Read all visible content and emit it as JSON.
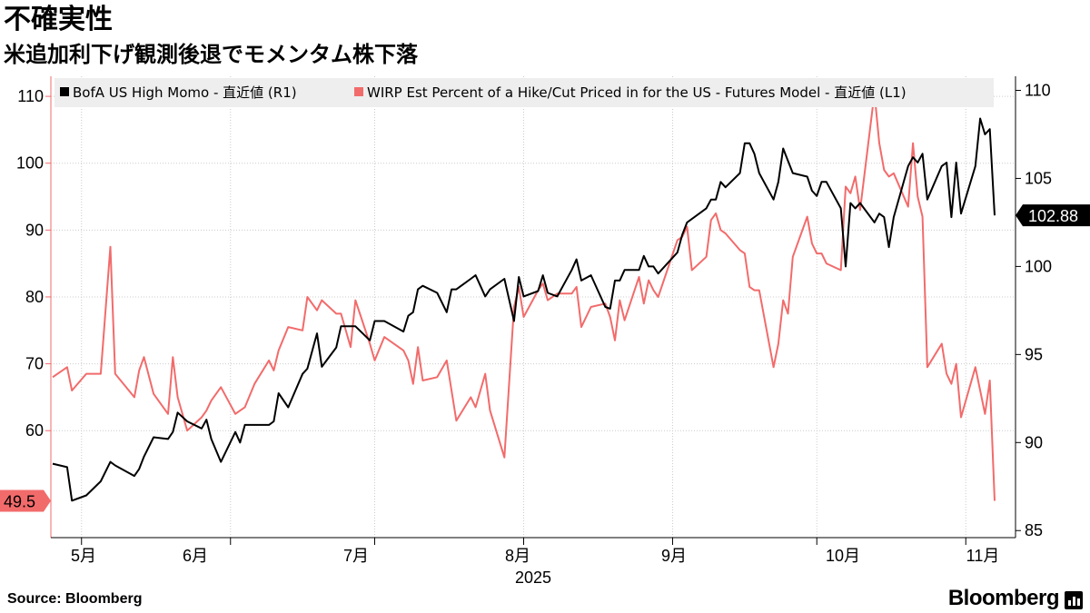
{
  "title": "不確実性",
  "subtitle": "米追加利下げ観測後退でモメンタム株下落",
  "source": "Source:  Bloomberg",
  "brand": "Bloomberg",
  "colors": {
    "momo": "#000000",
    "wirp": "#f26b6b",
    "grid": "#cccccc",
    "legend_bg": "#eeeeee"
  },
  "chart_data": {
    "type": "line",
    "xlabel": "2025",
    "x_ticks": [
      "5月",
      "6月",
      "7月",
      "8月",
      "9月",
      "10月",
      "11月"
    ],
    "x_range": [
      "2025-04-25",
      "2025-11-07"
    ],
    "left_axis": {
      "ticks": [
        60,
        70,
        80,
        90,
        100,
        110
      ],
      "range": [
        44,
        113
      ]
    },
    "right_axis": {
      "ticks": [
        85,
        90,
        95,
        100,
        105,
        110
      ],
      "range": [
        84.6,
        110.8
      ]
    },
    "last_values": {
      "momo": "102.88",
      "wirp": "49.5"
    },
    "series": [
      {
        "name": "BofA US High Momo - 直近値 (R1)",
        "axis": "right",
        "values": [
          [
            "2025-04-25",
            88.8
          ],
          [
            "2025-04-28",
            88.6
          ],
          [
            "2025-04-29",
            86.7
          ],
          [
            "2025-05-02",
            87.0
          ],
          [
            "2025-05-05",
            87.8
          ],
          [
            "2025-05-07",
            88.9
          ],
          [
            "2025-05-08",
            88.7
          ],
          [
            "2025-05-12",
            88.1
          ],
          [
            "2025-05-13",
            88.5
          ],
          [
            "2025-05-14",
            89.2
          ],
          [
            "2025-05-16",
            90.3
          ],
          [
            "2025-05-19",
            90.2
          ],
          [
            "2025-05-20",
            90.6
          ],
          [
            "2025-05-21",
            91.7
          ],
          [
            "2025-05-23",
            91.2
          ],
          [
            "2025-05-26",
            90.8
          ],
          [
            "2025-05-27",
            91.3
          ],
          [
            "2025-05-28",
            90.2
          ],
          [
            "2025-05-30",
            88.9
          ],
          [
            "2025-06-02",
            90.6
          ],
          [
            "2025-06-03",
            90.0
          ],
          [
            "2025-06-04",
            91.0
          ],
          [
            "2025-06-06",
            91.0
          ],
          [
            "2025-06-09",
            91.0
          ],
          [
            "2025-06-10",
            91.2
          ],
          [
            "2025-06-11",
            92.8
          ],
          [
            "2025-06-13",
            92.0
          ],
          [
            "2025-06-16",
            93.9
          ],
          [
            "2025-06-17",
            94.2
          ],
          [
            "2025-06-19",
            96.2
          ],
          [
            "2025-06-20",
            94.3
          ],
          [
            "2025-06-23",
            95.4
          ],
          [
            "2025-06-24",
            96.6
          ],
          [
            "2025-06-26",
            96.6
          ],
          [
            "2025-06-27",
            96.6
          ],
          [
            "2025-06-30",
            95.8
          ],
          [
            "2025-07-01",
            96.9
          ],
          [
            "2025-07-03",
            96.9
          ],
          [
            "2025-07-07",
            96.3
          ],
          [
            "2025-07-08",
            97.2
          ],
          [
            "2025-07-09",
            97.4
          ],
          [
            "2025-07-10",
            98.7
          ],
          [
            "2025-07-11",
            98.9
          ],
          [
            "2025-07-14",
            98.5
          ],
          [
            "2025-07-16",
            97.4
          ],
          [
            "2025-07-17",
            98.7
          ],
          [
            "2025-07-18",
            98.7
          ],
          [
            "2025-07-21",
            99.3
          ],
          [
            "2025-07-22",
            99.5
          ],
          [
            "2025-07-24",
            98.3
          ],
          [
            "2025-07-25",
            98.7
          ],
          [
            "2025-07-28",
            99.3
          ],
          [
            "2025-07-30",
            96.9
          ],
          [
            "2025-07-31",
            99.4
          ],
          [
            "2025-08-01",
            98.3
          ],
          [
            "2025-08-04",
            98.6
          ],
          [
            "2025-08-05",
            99.5
          ],
          [
            "2025-08-06",
            98.5
          ],
          [
            "2025-08-08",
            98.3
          ],
          [
            "2025-08-11",
            99.8
          ],
          [
            "2025-08-12",
            100.4
          ],
          [
            "2025-08-13",
            99.2
          ],
          [
            "2025-08-15",
            99.5
          ],
          [
            "2025-08-18",
            97.7
          ],
          [
            "2025-08-19",
            97.6
          ],
          [
            "2025-08-20",
            99.2
          ],
          [
            "2025-08-21",
            99.2
          ],
          [
            "2025-08-22",
            99.8
          ],
          [
            "2025-08-25",
            99.8
          ],
          [
            "2025-08-26",
            100.6
          ],
          [
            "2025-08-27",
            100.0
          ],
          [
            "2025-08-28",
            100.0
          ],
          [
            "2025-08-29",
            99.6
          ],
          [
            "2025-09-02",
            100.8
          ],
          [
            "2025-09-03",
            101.8
          ],
          [
            "2025-09-04",
            102.5
          ],
          [
            "2025-09-05",
            102.7
          ],
          [
            "2025-09-08",
            103.3
          ],
          [
            "2025-09-09",
            103.8
          ],
          [
            "2025-09-10",
            103.8
          ],
          [
            "2025-09-11",
            104.8
          ],
          [
            "2025-09-12",
            104.5
          ],
          [
            "2025-09-15",
            105.3
          ],
          [
            "2025-09-16",
            107.0
          ],
          [
            "2025-09-17",
            107.0
          ],
          [
            "2025-09-18",
            106.4
          ],
          [
            "2025-09-19",
            105.3
          ],
          [
            "2025-09-22",
            103.8
          ],
          [
            "2025-09-23",
            104.8
          ],
          [
            "2025-09-24",
            106.7
          ],
          [
            "2025-09-25",
            106.0
          ],
          [
            "2025-09-26",
            105.3
          ],
          [
            "2025-09-29",
            105.1
          ],
          [
            "2025-09-30",
            104.3
          ],
          [
            "2025-10-01",
            104.0
          ],
          [
            "2025-10-02",
            104.8
          ],
          [
            "2025-10-03",
            104.8
          ],
          [
            "2025-10-06",
            103.3
          ],
          [
            "2025-10-07",
            100.0
          ],
          [
            "2025-10-08",
            103.6
          ],
          [
            "2025-10-09",
            103.3
          ],
          [
            "2025-10-10",
            103.6
          ],
          [
            "2025-10-13",
            102.5
          ],
          [
            "2025-10-14",
            103.0
          ],
          [
            "2025-10-15",
            102.8
          ],
          [
            "2025-10-16",
            101.1
          ],
          [
            "2025-10-17",
            102.8
          ],
          [
            "2025-10-20",
            105.7
          ],
          [
            "2025-10-21",
            106.2
          ],
          [
            "2025-10-22",
            105.9
          ],
          [
            "2025-10-23",
            106.4
          ],
          [
            "2025-10-24",
            103.8
          ],
          [
            "2025-10-27",
            105.7
          ],
          [
            "2025-10-28",
            105.9
          ],
          [
            "2025-10-29",
            102.8
          ],
          [
            "2025-10-30",
            105.9
          ],
          [
            "2025-10-31",
            103.0
          ],
          [
            "2025-11-03",
            105.7
          ],
          [
            "2025-11-04",
            108.4
          ],
          [
            "2025-11-05",
            107.5
          ],
          [
            "2025-11-06",
            107.8
          ],
          [
            "2025-11-07",
            102.9
          ]
        ]
      },
      {
        "name": "WIRP Est Percent of a Hike/Cut Priced in for the US - Futures Model - 直近値 (L1)",
        "axis": "left",
        "values": [
          [
            "2025-04-25",
            68.0
          ],
          [
            "2025-04-28",
            69.5
          ],
          [
            "2025-04-29",
            66.0
          ],
          [
            "2025-05-02",
            68.5
          ],
          [
            "2025-05-05",
            68.5
          ],
          [
            "2025-05-07",
            87.5
          ],
          [
            "2025-05-08",
            68.5
          ],
          [
            "2025-05-12",
            65.0
          ],
          [
            "2025-05-13",
            69.0
          ],
          [
            "2025-05-14",
            71.0
          ],
          [
            "2025-05-16",
            65.5
          ],
          [
            "2025-05-19",
            62.5
          ],
          [
            "2025-05-20",
            71.0
          ],
          [
            "2025-05-21",
            65.0
          ],
          [
            "2025-05-23",
            60.0
          ],
          [
            "2025-05-26",
            62.0
          ],
          [
            "2025-05-27",
            63.0
          ],
          [
            "2025-05-28",
            64.5
          ],
          [
            "2025-05-30",
            66.5
          ],
          [
            "2025-06-02",
            62.5
          ],
          [
            "2025-06-03",
            63.0
          ],
          [
            "2025-06-04",
            63.5
          ],
          [
            "2025-06-06",
            67.0
          ],
          [
            "2025-06-09",
            70.5
          ],
          [
            "2025-06-10",
            69.0
          ],
          [
            "2025-06-11",
            72.0
          ],
          [
            "2025-06-13",
            75.5
          ],
          [
            "2025-06-16",
            75.0
          ],
          [
            "2025-06-17",
            80.0
          ],
          [
            "2025-06-19",
            78.0
          ],
          [
            "2025-06-20",
            79.5
          ],
          [
            "2025-06-23",
            77.5
          ],
          [
            "2025-06-24",
            77.5
          ],
          [
            "2025-06-26",
            72.5
          ],
          [
            "2025-06-27",
            79.5
          ],
          [
            "2025-06-30",
            73.0
          ],
          [
            "2025-07-01",
            70.5
          ],
          [
            "2025-07-03",
            74.0
          ],
          [
            "2025-07-07",
            72.0
          ],
          [
            "2025-07-08",
            70.5
          ],
          [
            "2025-07-09",
            67.0
          ],
          [
            "2025-07-10",
            72.5
          ],
          [
            "2025-07-11",
            67.5
          ],
          [
            "2025-07-14",
            68.0
          ],
          [
            "2025-07-16",
            70.5
          ],
          [
            "2025-07-17",
            66.0
          ],
          [
            "2025-07-18",
            61.5
          ],
          [
            "2025-07-21",
            65.0
          ],
          [
            "2025-07-22",
            63.5
          ],
          [
            "2025-07-24",
            68.5
          ],
          [
            "2025-07-25",
            63.0
          ],
          [
            "2025-07-28",
            56.0
          ],
          [
            "2025-07-30",
            78.5
          ],
          [
            "2025-07-31",
            81.5
          ],
          [
            "2025-08-01",
            77.0
          ],
          [
            "2025-08-04",
            81.0
          ],
          [
            "2025-08-05",
            82.0
          ],
          [
            "2025-08-06",
            79.5
          ],
          [
            "2025-08-08",
            80.5
          ],
          [
            "2025-08-11",
            80.5
          ],
          [
            "2025-08-12",
            81.5
          ],
          [
            "2025-08-13",
            75.5
          ],
          [
            "2025-08-15",
            78.5
          ],
          [
            "2025-08-18",
            79.0
          ],
          [
            "2025-08-19",
            77.0
          ],
          [
            "2025-08-20",
            73.5
          ],
          [
            "2025-08-21",
            79.5
          ],
          [
            "2025-08-22",
            76.5
          ],
          [
            "2025-08-25",
            83.0
          ],
          [
            "2025-08-26",
            79.0
          ],
          [
            "2025-08-27",
            82.5
          ],
          [
            "2025-08-28",
            81.0
          ],
          [
            "2025-08-29",
            80.0
          ],
          [
            "2025-09-02",
            88.5
          ],
          [
            "2025-09-03",
            89.0
          ],
          [
            "2025-09-04",
            90.5
          ],
          [
            "2025-09-05",
            84.0
          ],
          [
            "2025-09-08",
            86.0
          ],
          [
            "2025-09-09",
            91.5
          ],
          [
            "2025-09-10",
            92.5
          ],
          [
            "2025-09-11",
            90.0
          ],
          [
            "2025-09-12",
            89.5
          ],
          [
            "2025-09-15",
            87.0
          ],
          [
            "2025-09-16",
            86.5
          ],
          [
            "2025-09-17",
            81.5
          ],
          [
            "2025-09-18",
            81.0
          ],
          [
            "2025-09-19",
            81.0
          ],
          [
            "2025-09-22",
            69.5
          ],
          [
            "2025-09-23",
            73.0
          ],
          [
            "2025-09-24",
            79.5
          ],
          [
            "2025-09-25",
            77.5
          ],
          [
            "2025-09-26",
            86.0
          ],
          [
            "2025-09-29",
            92.0
          ],
          [
            "2025-09-30",
            88.0
          ],
          [
            "2025-10-01",
            86.5
          ],
          [
            "2025-10-02",
            86.5
          ],
          [
            "2025-10-03",
            85.0
          ],
          [
            "2025-10-06",
            84.0
          ],
          [
            "2025-10-07",
            96.5
          ],
          [
            "2025-10-08",
            95.5
          ],
          [
            "2025-10-09",
            98.0
          ],
          [
            "2025-10-10",
            93.0
          ],
          [
            "2025-10-13",
            110.5
          ],
          [
            "2025-10-14",
            103.0
          ],
          [
            "2025-10-15",
            99.0
          ],
          [
            "2025-10-16",
            98.0
          ],
          [
            "2025-10-17",
            98.5
          ],
          [
            "2025-10-20",
            93.5
          ],
          [
            "2025-10-21",
            103.0
          ],
          [
            "2025-10-22",
            95.0
          ],
          [
            "2025-10-23",
            92.0
          ],
          [
            "2025-10-24",
            69.5
          ],
          [
            "2025-10-27",
            73.0
          ],
          [
            "2025-10-28",
            68.5
          ],
          [
            "2025-10-29",
            67.0
          ],
          [
            "2025-10-30",
            70.0
          ],
          [
            "2025-10-31",
            62.0
          ],
          [
            "2025-11-03",
            69.5
          ],
          [
            "2025-11-04",
            66.0
          ],
          [
            "2025-11-05",
            62.5
          ],
          [
            "2025-11-06",
            67.5
          ],
          [
            "2025-11-07",
            49.5
          ]
        ]
      }
    ]
  }
}
